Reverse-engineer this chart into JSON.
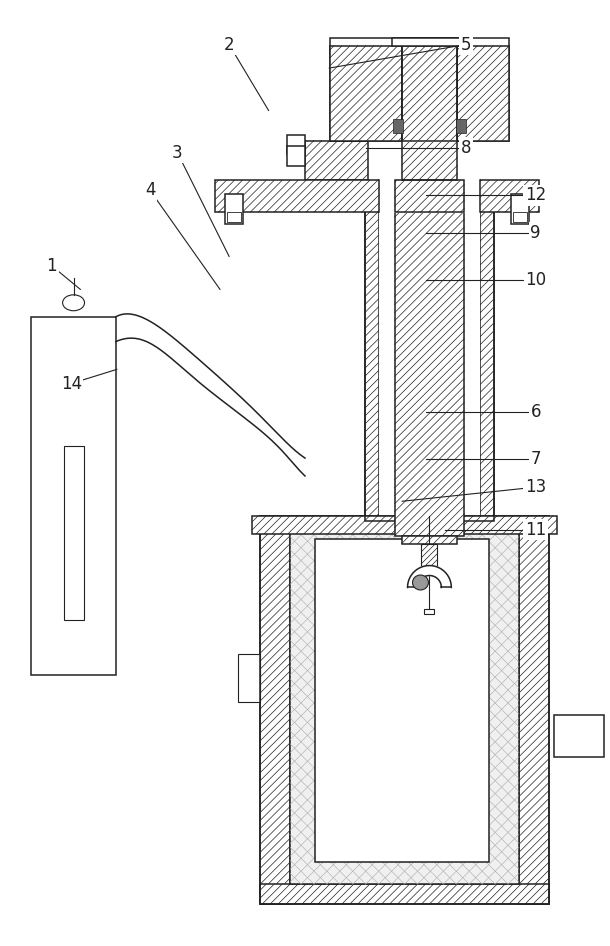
{
  "bg_color": "#ffffff",
  "line_color": "#222222",
  "label_color": "#222222",
  "label_fontsize": 12,
  "figsize": [
    6.1,
    9.46
  ],
  "dpi": 100,
  "labels": {
    "1": {
      "lpos": [
        0.083,
        0.72
      ],
      "tpos": [
        0.13,
        0.695
      ]
    },
    "2": {
      "lpos": [
        0.375,
        0.955
      ],
      "tpos": [
        0.44,
        0.885
      ]
    },
    "3": {
      "lpos": [
        0.29,
        0.84
      ],
      "tpos": [
        0.375,
        0.73
      ]
    },
    "4": {
      "lpos": [
        0.245,
        0.8
      ],
      "tpos": [
        0.36,
        0.695
      ]
    },
    "5": {
      "lpos": [
        0.765,
        0.955
      ],
      "tpos": [
        0.54,
        0.93
      ]
    },
    "6": {
      "lpos": [
        0.88,
        0.565
      ],
      "tpos": [
        0.7,
        0.565
      ]
    },
    "7": {
      "lpos": [
        0.88,
        0.515
      ],
      "tpos": [
        0.7,
        0.515
      ]
    },
    "8": {
      "lpos": [
        0.765,
        0.845
      ],
      "tpos": [
        0.6,
        0.845
      ]
    },
    "9": {
      "lpos": [
        0.88,
        0.755
      ],
      "tpos": [
        0.7,
        0.755
      ]
    },
    "10": {
      "lpos": [
        0.88,
        0.705
      ],
      "tpos": [
        0.7,
        0.705
      ]
    },
    "11": {
      "lpos": [
        0.88,
        0.44
      ],
      "tpos": [
        0.73,
        0.44
      ]
    },
    "12": {
      "lpos": [
        0.88,
        0.795
      ],
      "tpos": [
        0.7,
        0.795
      ]
    },
    "13": {
      "lpos": [
        0.88,
        0.485
      ],
      "tpos": [
        0.66,
        0.47
      ]
    },
    "14": {
      "lpos": [
        0.115,
        0.595
      ],
      "tpos": [
        0.19,
        0.61
      ]
    }
  }
}
